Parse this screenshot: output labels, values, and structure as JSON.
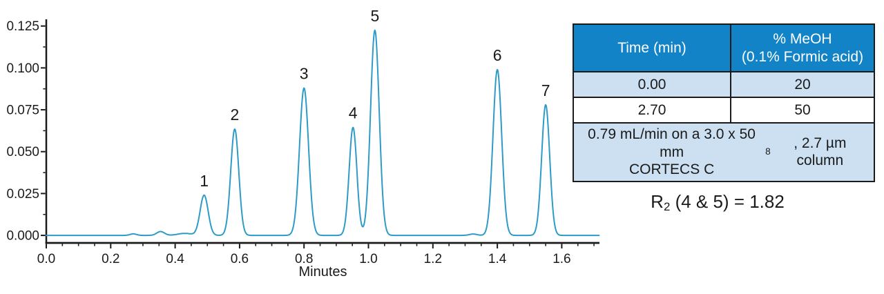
{
  "chart_data": {
    "type": "line",
    "title": "",
    "xlabel": "Minutes",
    "ylabel": "",
    "xlim": [
      0,
      1.717
    ],
    "ylim": [
      -0.0045,
      0.129
    ],
    "grid": false,
    "line_color": "#2d9bc7",
    "axis_color": "#1a1a1a",
    "x_ticks": {
      "values": [
        0.0,
        0.2,
        0.4,
        0.6,
        0.8,
        1.0,
        1.2,
        1.4,
        1.6
      ],
      "labels": [
        "0.0",
        "0.2",
        "0.4",
        "0.6",
        "0.8",
        "1.0",
        "1.2",
        "1.4",
        "1.6"
      ],
      "minor_step": 0.05
    },
    "y_ticks": {
      "values": [
        0.0,
        0.025,
        0.05,
        0.075,
        0.1,
        0.125
      ],
      "labels": [
        "0.000",
        "0.025",
        "0.050",
        "0.075",
        "0.100",
        "0.125"
      ],
      "minor_step": 0.0125
    },
    "peaks": [
      {
        "label": "1",
        "time": 0.49,
        "height": 0.024,
        "sigma": 0.0125
      },
      {
        "label": "2",
        "time": 0.585,
        "height": 0.0635,
        "sigma": 0.0125
      },
      {
        "label": "3",
        "time": 0.8,
        "height": 0.088,
        "sigma": 0.014
      },
      {
        "label": "4",
        "time": 0.952,
        "height": 0.0645,
        "sigma": 0.012
      },
      {
        "label": "5",
        "time": 1.02,
        "height": 0.1225,
        "sigma": 0.0135
      },
      {
        "label": "6",
        "time": 1.4,
        "height": 0.099,
        "sigma": 0.0135
      },
      {
        "label": "7",
        "time": 1.55,
        "height": 0.078,
        "sigma": 0.0125
      }
    ],
    "baseline_bumps": [
      {
        "time": 0.27,
        "height": 0.0009,
        "sigma": 0.01
      },
      {
        "time": 0.355,
        "height": 0.0023,
        "sigma": 0.012
      },
      {
        "time": 0.43,
        "height": 0.0012,
        "sigma": 0.022
      },
      {
        "time": 1.325,
        "height": 0.0008,
        "sigma": 0.012
      }
    ]
  },
  "table": {
    "headers": [
      "Time (min)",
      "% MeOH\n(0.1% Formic acid)"
    ],
    "rows": [
      [
        "0.00",
        "20"
      ],
      [
        "2.70",
        "50"
      ]
    ],
    "footer": {
      "pre": "0.79 mL/min on a 3.0 x 50 mm\nCORTECS C",
      "sub": "8",
      "post": ", 2.7 µm column"
    },
    "colors": {
      "header_bg": "#1283c6",
      "header_text": "#ffffff",
      "alt_row_bg": "#cce0f2",
      "border": "#1a1a1a"
    }
  },
  "annotation": {
    "pre": "R",
    "sub": "2",
    "post": " (4 & 5) = 1.82"
  }
}
